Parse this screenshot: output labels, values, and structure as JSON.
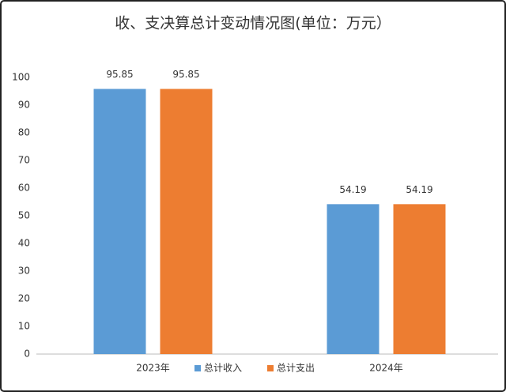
{
  "chart_data": {
    "type": "bar",
    "title": "收、支决算总计变动情况图(单位：万元）",
    "categories": [
      "2023年",
      "2024年"
    ],
    "series": [
      {
        "name": "总计收入",
        "color": "#5b9bd5",
        "values": [
          95.85,
          54.19
        ]
      },
      {
        "name": "总计支出",
        "color": "#ed7d31",
        "values": [
          95.85,
          54.19
        ]
      }
    ],
    "ylim": [
      0,
      100
    ],
    "yticks": [
      0,
      10,
      20,
      30,
      40,
      50,
      60,
      70,
      80,
      90,
      100
    ],
    "grid": false,
    "legend": "bottom"
  }
}
